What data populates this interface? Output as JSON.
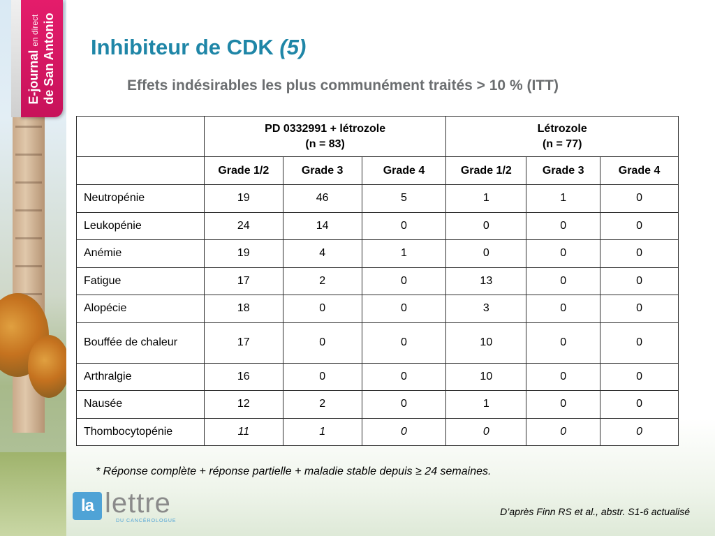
{
  "brand": {
    "line1_bold": "E-journal",
    "line1_small": "en direct",
    "line2": "de San Antonio"
  },
  "title": {
    "main": "Inhibiteur de CDK ",
    "italic": "(5)"
  },
  "subtitle": "Effets indésirables les plus communément traités > 10 % (ITT)",
  "table": {
    "groups": [
      {
        "line1": "PD 0332991 + létrozole",
        "line2": "(n = 83)"
      },
      {
        "line1": "Létrozole",
        "line2": "(n = 77)"
      }
    ],
    "grade_headers": [
      "Grade 1/2",
      "Grade 3",
      "Grade 4",
      "Grade 1/2",
      "Grade 3",
      "Grade 4"
    ],
    "rows": [
      {
        "name": "Neutropénie",
        "values": [
          "19",
          "46",
          "5",
          "1",
          "1",
          "0"
        ]
      },
      {
        "name": "Leukopénie",
        "values": [
          "24",
          "14",
          "0",
          "0",
          "0",
          "0"
        ]
      },
      {
        "name": "Anémie",
        "values": [
          "19",
          "4",
          "1",
          "0",
          "0",
          "0"
        ]
      },
      {
        "name": "Fatigue",
        "values": [
          "17",
          "2",
          "0",
          "13",
          "0",
          "0"
        ]
      },
      {
        "name": "Alopécie",
        "values": [
          "18",
          "0",
          "0",
          "3",
          "0",
          "0"
        ]
      },
      {
        "name": "Bouffée de chaleur",
        "values": [
          "17",
          "0",
          "0",
          "10",
          "0",
          "0"
        ]
      },
      {
        "name": "Arthralgie",
        "values": [
          "16",
          "0",
          "0",
          "10",
          "0",
          "0"
        ]
      },
      {
        "name": "Nausée",
        "values": [
          "12",
          "2",
          "0",
          "1",
          "0",
          "0"
        ]
      },
      {
        "name": "Thombocytopénie",
        "values": [
          "11",
          "1",
          "0",
          "0",
          "0",
          "0"
        ]
      }
    ]
  },
  "footnote": "* Réponse complète + réponse  partielle + maladie stable depuis ≥ 24 semaines.",
  "source": "D’après Finn RS et al., abstr. S1-6 actualisé",
  "logo": {
    "la": "la",
    "lettre": "lettre",
    "sub": "DU CANCÉROLOGUE"
  },
  "colors": {
    "title": "#1f86a7",
    "subtitle": "#6b6e70",
    "brand_ribbon": "#e41c6b",
    "logo_blue": "#4fa3d6"
  }
}
